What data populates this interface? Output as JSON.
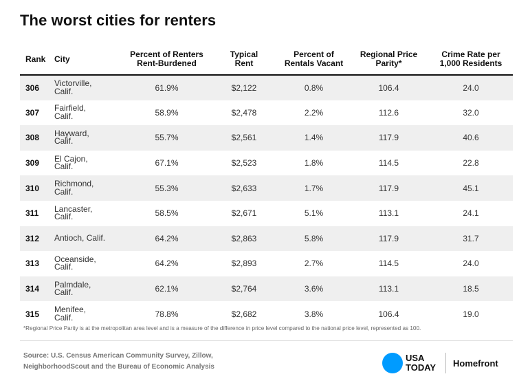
{
  "title": "The worst cities for renters",
  "chart_data": {
    "type": "table",
    "title": "The worst cities for renters",
    "columns": [
      "Rank",
      "City",
      "Percent of Renters Rent-Burdened",
      "Typical Rent",
      "Percent of Rentals Vacant",
      "Regional Price Parity*",
      "Crime Rate per 1,000 Residents"
    ],
    "rows": [
      {
        "rank": "306",
        "city": "Victorville,\nCalif.",
        "rent_burdened": "61.9%",
        "typical_rent": "$2,122",
        "vacant": "0.8%",
        "price_parity": "106.4",
        "crime_rate": "24.0"
      },
      {
        "rank": "307",
        "city": "Fairfield,\nCalif.",
        "rent_burdened": "58.9%",
        "typical_rent": "$2,478",
        "vacant": "2.2%",
        "price_parity": "112.6",
        "crime_rate": "32.0"
      },
      {
        "rank": "308",
        "city": "Hayward,\nCalif.",
        "rent_burdened": "55.7%",
        "typical_rent": "$2,561",
        "vacant": "1.4%",
        "price_parity": "117.9",
        "crime_rate": "40.6"
      },
      {
        "rank": "309",
        "city": "El Cajon,\nCalif.",
        "rent_burdened": "67.1%",
        "typical_rent": "$2,523",
        "vacant": "1.8%",
        "price_parity": "114.5",
        "crime_rate": "22.8"
      },
      {
        "rank": "310",
        "city": "Richmond,\nCalif.",
        "rent_burdened": "55.3%",
        "typical_rent": "$2,633",
        "vacant": "1.7%",
        "price_parity": "117.9",
        "crime_rate": "45.1"
      },
      {
        "rank": "311",
        "city": "Lancaster,\nCalif.",
        "rent_burdened": "58.5%",
        "typical_rent": "$2,671",
        "vacant": "5.1%",
        "price_parity": "113.1",
        "crime_rate": "24.1"
      },
      {
        "rank": "312",
        "city": "Antioch, Calif.",
        "rent_burdened": "64.2%",
        "typical_rent": "$2,863",
        "vacant": "5.8%",
        "price_parity": "117.9",
        "crime_rate": "31.7"
      },
      {
        "rank": "313",
        "city": "Oceanside,\nCalif.",
        "rent_burdened": "64.2%",
        "typical_rent": "$2,893",
        "vacant": "2.7%",
        "price_parity": "114.5",
        "crime_rate": "24.0"
      },
      {
        "rank": "314",
        "city": "Palmdale,\nCalif.",
        "rent_burdened": "62.1%",
        "typical_rent": "$2,764",
        "vacant": "3.6%",
        "price_parity": "113.1",
        "crime_rate": "18.5"
      },
      {
        "rank": "315",
        "city": "Menifee,\nCalif.",
        "rent_burdened": "78.8%",
        "typical_rent": "$2,682",
        "vacant": "3.8%",
        "price_parity": "106.4",
        "crime_rate": "19.0"
      }
    ]
  },
  "headers": {
    "rank": "Rank",
    "city": "City",
    "rent_burdened_1": "Percent of Renters",
    "rent_burdened_2": "Rent-Burdened",
    "typical_rent_1": "Typical",
    "typical_rent_2": "Rent",
    "vacant_1": "Percent of",
    "vacant_2": "Rentals Vacant",
    "price_parity_1": "Regional Price",
    "price_parity_2": "Parity*",
    "crime_rate_1": "Crime Rate per",
    "crime_rate_2": "1,000 Residents"
  },
  "footnote": "*Regional Price Parity is at the metropolitan area level and is a measure of the difference in price level compared to the national price level, represented as 100.",
  "source_line_1": "Source: U.S. Census American Community Survey, Zillow,",
  "source_line_2": "NeighborhoodScout and the Bureau of Economic Analysis",
  "brand": {
    "name_line_1": "USA",
    "name_line_2": "TODAY",
    "sub": "Homefront",
    "dot_color": "#009bff"
  }
}
